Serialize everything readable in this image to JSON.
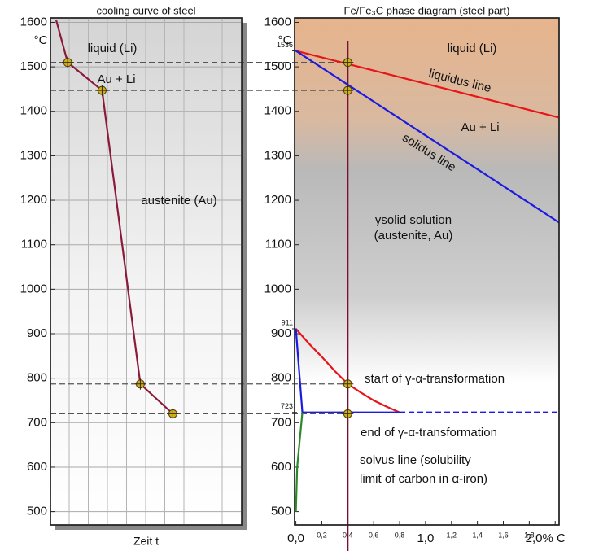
{
  "chart_data": [
    {
      "type": "line",
      "title": "cooling curve of steel",
      "x_label": "Zeit t",
      "y_unit": "°C",
      "xlim": [
        0,
        10
      ],
      "ylim": [
        470,
        1610
      ],
      "yticks": [
        500,
        600,
        700,
        800,
        900,
        1000,
        1100,
        1200,
        1300,
        1400,
        1500,
        1600
      ],
      "grid": true,
      "hlines": [
        1510,
        1447,
        787,
        720
      ],
      "series": [
        {
          "color": "#8b1a3a",
          "x": [
            0.3,
            0.9,
            2.7,
            4.7,
            6.4
          ],
          "values": [
            1605,
            1510,
            1447,
            787,
            720
          ]
        },
        {
          "color": "#c9b21a",
          "marker": true,
          "x": [
            0.9,
            2.7,
            4.7,
            6.4
          ],
          "values": [
            1510,
            1447,
            787,
            720
          ]
        }
      ],
      "annotations": [
        {
          "text": "liquid (Li)",
          "color": "#111"
        },
        {
          "text": "Au + Li",
          "color": "#111"
        },
        {
          "text": "austenite (Au)",
          "color": "#111"
        }
      ]
    },
    {
      "type": "line",
      "title": "Fe/Fe₃C phase diagram (steel part)",
      "y_unit": "°C",
      "xlim": [
        -0.01,
        2.03
      ],
      "ylim": [
        470,
        1610
      ],
      "yticks": [
        500,
        600,
        700,
        800,
        900,
        1000,
        1100,
        1200,
        1300,
        1400,
        1500,
        1600
      ],
      "special_yticks": [
        1536,
        911,
        723
      ],
      "xticks": [
        {
          "value": 0,
          "label": "0,0"
        },
        {
          "value": 0.2,
          "label": "0,2"
        },
        {
          "value": 0.4,
          "label": "0,4"
        },
        {
          "value": 0.6,
          "label": "0,6"
        },
        {
          "value": 0.8,
          "label": "0,8"
        },
        {
          "value": 1,
          "label": "1,0"
        },
        {
          "value": 1.2,
          "label": "1,2"
        },
        {
          "value": 1.4,
          "label": "1,4"
        },
        {
          "value": 1.6,
          "label": "1,6"
        },
        {
          "value": 1.8,
          "label": "1,8"
        },
        {
          "value": 2,
          "label": "2,0% C"
        }
      ],
      "vline": 0.4,
      "vline_color": "#7a1030",
      "series": [
        {
          "color": "#e8141a",
          "x": [
            0,
            2.03
          ],
          "values": [
            1536,
            1386
          ]
        },
        {
          "color": "#1a1ae0",
          "x": [
            0,
            2.03
          ],
          "values": [
            1536,
            1150
          ]
        },
        {
          "color": "#e8141a",
          "x": [
            0,
            0.1,
            0.2,
            0.3,
            0.4,
            0.5,
            0.6,
            0.7,
            0.8
          ],
          "values": [
            911,
            878,
            848,
            816,
            787,
            768,
            750,
            736,
            723
          ]
        },
        {
          "color": "#1a1ae0",
          "x": [
            0,
            0.05,
            0.8
          ],
          "values": [
            911,
            723,
            723
          ]
        },
        {
          "color": "#1a1ae0",
          "dash": true,
          "x": [
            0.8,
            2.03
          ],
          "values": [
            723,
            723
          ]
        },
        {
          "color": "#2a8a2a",
          "x": [
            0.05,
            0.01,
            0
          ],
          "values": [
            723,
            600,
            500
          ]
        },
        {
          "color": "#c9b21a",
          "marker": true,
          "x": [
            0.4,
            0.4,
            0.4,
            0.4
          ],
          "values": [
            1510,
            1447,
            787,
            720
          ]
        }
      ],
      "annotations": [
        {
          "text": "liquid (Li)",
          "color": "#111"
        },
        {
          "text": "liquidus line",
          "color": "#e8141a"
        },
        {
          "text": "Au + Li",
          "color": "#111"
        },
        {
          "text": "solidus line",
          "color": "#1a1ae0"
        },
        {
          "text": "γsolid solution",
          "color": "#111"
        },
        {
          "text": "(austenite, Au)",
          "color": "#111"
        },
        {
          "text": "start of γ-α-transformation",
          "color": "#e8141a"
        },
        {
          "text": "end of γ-α-transformation",
          "color": "#1a1ae0"
        },
        {
          "text": "solvus line (solubility",
          "color": "#2a8a2a"
        },
        {
          "text": "limit of carbon in α-iron)",
          "color": "#2a8a2a"
        }
      ]
    }
  ]
}
